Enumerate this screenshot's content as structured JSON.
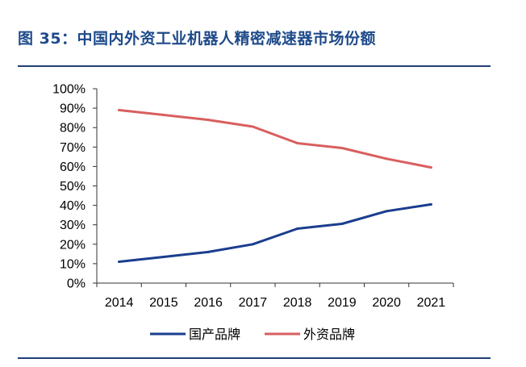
{
  "figure": {
    "title": "图 35：中国内外资工业机器人精密减速器市场份额"
  },
  "chart_data": {
    "type": "line",
    "title": "",
    "xlabel": "",
    "ylabel": "",
    "x": [
      "2014",
      "2015",
      "2016",
      "2017",
      "2018",
      "2019",
      "2020",
      "2021"
    ],
    "y_ticks": [
      "0%",
      "10%",
      "20%",
      "30%",
      "40%",
      "50%",
      "60%",
      "70%",
      "80%",
      "90%",
      "100%"
    ],
    "ylim": [
      0,
      100
    ],
    "y_unit": "%",
    "grid": false,
    "legend_position": "bottom",
    "series": [
      {
        "name": "国产品牌",
        "color": "#1a3d8f",
        "values": [
          11,
          13.5,
          16,
          20,
          28,
          30.5,
          37,
          40.5
        ]
      },
      {
        "name": "外资品牌",
        "color": "#d95f5f",
        "values": [
          89,
          86.5,
          84,
          80.5,
          72,
          69.5,
          64,
          59.5
        ]
      }
    ]
  }
}
